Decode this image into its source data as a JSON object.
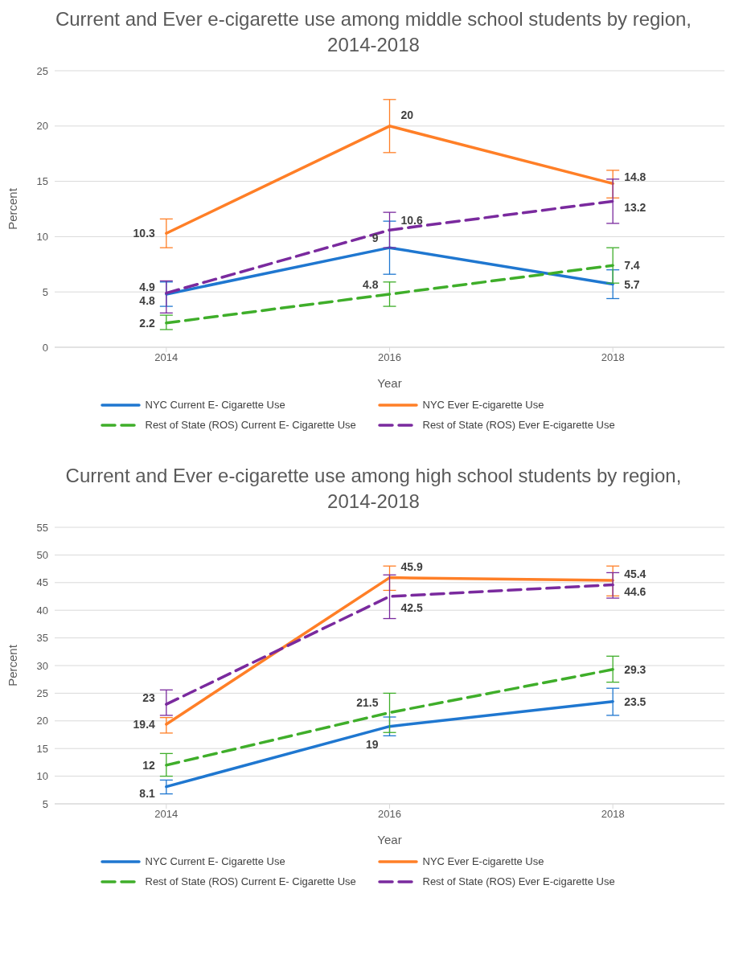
{
  "chart_data": [
    {
      "type": "line",
      "title": "Current and Ever e-cigarette use among middle school students by region, 2014-2018",
      "xlabel": "Year",
      "ylabel": "Percent",
      "categories": [
        "2014",
        "2016",
        "2018"
      ],
      "ylim": [
        0,
        25
      ],
      "yticks": [
        0,
        5,
        10,
        15,
        20,
        25
      ],
      "grid": "y",
      "legend": "bottom",
      "marker": "none",
      "data_labels": true,
      "series": [
        {
          "name": "NYC Current E- Cigarette Use",
          "color": "#1f77d0",
          "values": [
            4.8,
            9,
            5.7
          ],
          "errors": [
            [
              3.7,
              5.9
            ],
            [
              6.6,
              11.4
            ],
            [
              4.4,
              7.0
            ]
          ],
          "line_style": "solid"
        },
        {
          "name": "NYC Ever E-cigarette Use",
          "color": "#ff7f27",
          "values": [
            10.3,
            20,
            14.8
          ],
          "errors": [
            [
              9.0,
              11.6
            ],
            [
              17.6,
              22.4
            ],
            [
              13.5,
              16.0
            ]
          ],
          "line_style": "solid"
        },
        {
          "name": "Rest of State (ROS) Current E- Cigarette Use",
          "color": "#3fae2a",
          "values": [
            2.2,
            4.8,
            7.4
          ],
          "errors": [
            [
              1.6,
              2.9
            ],
            [
              3.7,
              5.9
            ],
            [
              5.8,
              9.0
            ]
          ],
          "line_style": "dashed"
        },
        {
          "name": "Rest of State (ROS) Ever E-cigarette Use",
          "color": "#7a2a9e",
          "values": [
            4.9,
            10.6,
            13.2
          ],
          "errors": [
            [
              3.1,
              6.0
            ],
            [
              9.0,
              12.2
            ],
            [
              11.2,
              15.2
            ]
          ],
          "line_style": "dashed"
        }
      ]
    },
    {
      "type": "line",
      "title": "Current and Ever e-cigarette use among high school students by region, 2014-2018",
      "xlabel": "Year",
      "ylabel": "Percent",
      "categories": [
        "2014",
        "2016",
        "2018"
      ],
      "ylim": [
        5,
        55
      ],
      "yticks": [
        5,
        10,
        15,
        20,
        25,
        30,
        35,
        40,
        45,
        50,
        55
      ],
      "grid": "y",
      "legend": "bottom",
      "marker": "none",
      "data_labels": true,
      "series": [
        {
          "name": "NYC Current E- Cigarette Use",
          "color": "#1f77d0",
          "values": [
            8.1,
            19,
            23.5
          ],
          "errors": [
            [
              6.8,
              9.3
            ],
            [
              17.3,
              20.7
            ],
            [
              21.0,
              25.9
            ]
          ],
          "line_style": "solid"
        },
        {
          "name": "NYC Ever E-cigarette Use",
          "color": "#ff7f27",
          "values": [
            19.4,
            45.9,
            45.4
          ],
          "errors": [
            [
              17.8,
              20.6
            ],
            [
              43.6,
              48.0
            ],
            [
              42.6,
              48.0
            ]
          ],
          "line_style": "solid"
        },
        {
          "name": "Rest of State (ROS) Current E- Cigarette Use",
          "color": "#3fae2a",
          "values": [
            12,
            21.5,
            29.3
          ],
          "errors": [
            [
              10.0,
              14.1
            ],
            [
              17.9,
              25.0
            ],
            [
              27.0,
              31.7
            ]
          ],
          "line_style": "dashed"
        },
        {
          "name": "Rest of State (ROS) Ever E-cigarette Use",
          "color": "#7a2a9e",
          "values": [
            23,
            42.5,
            44.6
          ],
          "errors": [
            [
              21.0,
              25.6
            ],
            [
              38.5,
              46.4
            ],
            [
              42.2,
              46.8
            ]
          ],
          "line_style": "dashed"
        }
      ]
    }
  ]
}
